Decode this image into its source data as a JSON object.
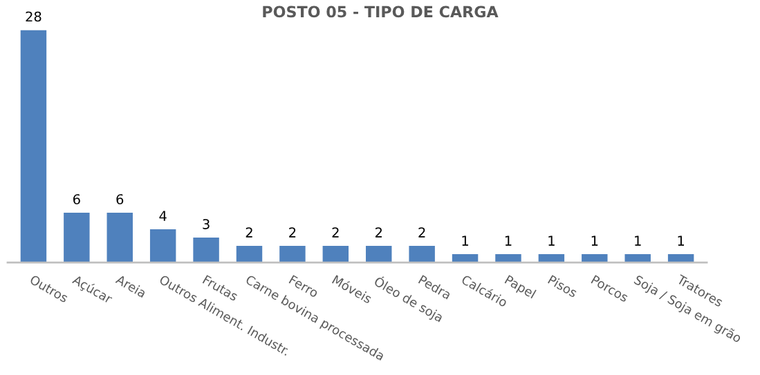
{
  "chart_data": {
    "type": "bar",
    "title": "POSTO 05 - TIPO DE CARGA",
    "categories": [
      "Outros",
      "Açúcar",
      "Areia",
      "Outros Aliment. Industr.",
      "Frutas",
      "Carne bovina processada",
      "Ferro",
      "Móveis",
      "Óleo de soja",
      "Pedra",
      "Calcário",
      "Papel",
      "Pisos",
      "Porcos",
      "Soja / Soja em grão",
      "Tratores"
    ],
    "values": [
      28,
      6,
      6,
      4,
      3,
      2,
      2,
      2,
      2,
      2,
      1,
      1,
      1,
      1,
      1,
      1
    ],
    "color": "#4f81bd",
    "data_labels": true,
    "grid": false,
    "legend": false,
    "tick_labels": "x"
  }
}
